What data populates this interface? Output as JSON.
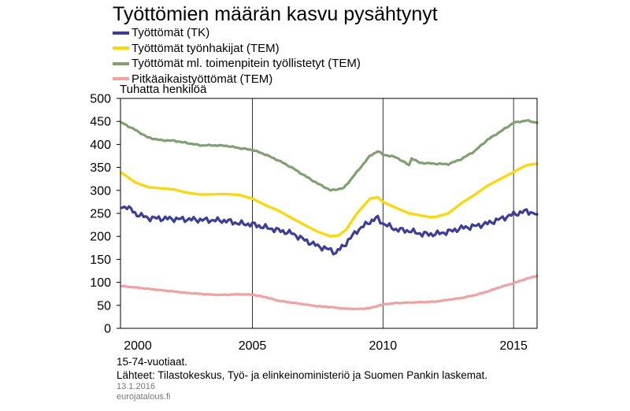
{
  "chart_data": {
    "type": "line",
    "title": "Työttömien määrän kasvu pysähtynyt",
    "ylabel": "Tuhatta henkilöä",
    "xlabel": "",
    "ylim": [
      0,
      500
    ],
    "xlim": [
      1999.95,
      2015.9
    ],
    "yticks": [
      0,
      50,
      100,
      150,
      200,
      250,
      300,
      350,
      400,
      450,
      500
    ],
    "yticks_labels": [
      "0",
      "50",
      "100",
      "150",
      "200",
      "250",
      "300",
      "350",
      "400",
      "450",
      "500"
    ],
    "xtick_labels": [
      {
        "label": "2000",
        "x": 2000
      },
      {
        "label": "2005",
        "x": 2005
      },
      {
        "label": "2010",
        "x": 2010
      },
      {
        "label": "2015",
        "x": 2015
      }
    ],
    "vgrid": [
      2005,
      2010,
      2015
    ],
    "legend_position": "top-left",
    "series": [
      {
        "name": "Työttömät (TK)",
        "color": "#3b3d9c",
        "noise": 7,
        "points": [
          [
            2000.0,
            262
          ],
          [
            2000.2,
            266
          ],
          [
            2000.5,
            250
          ],
          [
            2001.0,
            240
          ],
          [
            2002.0,
            238
          ],
          [
            2003.0,
            236
          ],
          [
            2004.0,
            234
          ],
          [
            2004.5,
            228
          ],
          [
            2005.0,
            226
          ],
          [
            2006.0,
            213
          ],
          [
            2006.5,
            207
          ],
          [
            2007.0,
            192
          ],
          [
            2007.5,
            179
          ],
          [
            2008.0,
            170
          ],
          [
            2008.2,
            165
          ],
          [
            2008.5,
            180
          ],
          [
            2009.0,
            212
          ],
          [
            2009.5,
            232
          ],
          [
            2009.8,
            240
          ],
          [
            2010.0,
            228
          ],
          [
            2010.5,
            215
          ],
          [
            2011.0,
            212
          ],
          [
            2011.5,
            205
          ],
          [
            2012.0,
            205
          ],
          [
            2012.5,
            210
          ],
          [
            2013.0,
            218
          ],
          [
            2013.5,
            222
          ],
          [
            2014.0,
            228
          ],
          [
            2014.5,
            238
          ],
          [
            2015.0,
            248
          ],
          [
            2015.5,
            255
          ],
          [
            2015.9,
            248
          ]
        ]
      },
      {
        "name": "Työttömät työnhakijat (TEM)",
        "color": "#ffd700",
        "noise": 0,
        "points": [
          [
            2000.0,
            338
          ],
          [
            2000.5,
            318
          ],
          [
            2001.0,
            307
          ],
          [
            2002.0,
            302
          ],
          [
            2002.5,
            295
          ],
          [
            2003.0,
            291
          ],
          [
            2004.0,
            292
          ],
          [
            2004.5,
            290
          ],
          [
            2005.0,
            282
          ],
          [
            2005.5,
            268
          ],
          [
            2006.0,
            256
          ],
          [
            2006.5,
            240
          ],
          [
            2007.0,
            225
          ],
          [
            2007.5,
            210
          ],
          [
            2008.0,
            200
          ],
          [
            2008.3,
            202
          ],
          [
            2008.6,
            215
          ],
          [
            2009.0,
            250
          ],
          [
            2009.5,
            282
          ],
          [
            2009.8,
            285
          ],
          [
            2010.0,
            275
          ],
          [
            2010.5,
            262
          ],
          [
            2011.0,
            250
          ],
          [
            2011.5,
            245
          ],
          [
            2011.8,
            242
          ],
          [
            2012.0,
            242
          ],
          [
            2012.5,
            250
          ],
          [
            2013.0,
            272
          ],
          [
            2013.5,
            290
          ],
          [
            2014.0,
            310
          ],
          [
            2014.5,
            325
          ],
          [
            2015.0,
            340
          ],
          [
            2015.5,
            355
          ],
          [
            2015.9,
            358
          ]
        ]
      },
      {
        "name": "Työttömät ml. toimenpitein työllistetyt (TEM)",
        "color": "#80a070",
        "noise": 1.5,
        "points": [
          [
            2000.0,
            447
          ],
          [
            2000.5,
            432
          ],
          [
            2001.0,
            415
          ],
          [
            2001.5,
            409
          ],
          [
            2002.0,
            408
          ],
          [
            2002.5,
            403
          ],
          [
            2003.0,
            398
          ],
          [
            2003.5,
            398
          ],
          [
            2004.0,
            397
          ],
          [
            2004.5,
            392
          ],
          [
            2005.0,
            388
          ],
          [
            2005.5,
            378
          ],
          [
            2006.0,
            365
          ],
          [
            2006.5,
            350
          ],
          [
            2007.0,
            332
          ],
          [
            2007.5,
            315
          ],
          [
            2008.0,
            300
          ],
          [
            2008.5,
            305
          ],
          [
            2009.0,
            340
          ],
          [
            2009.5,
            375
          ],
          [
            2009.8,
            385
          ],
          [
            2010.0,
            378
          ],
          [
            2010.5,
            372
          ],
          [
            2011.0,
            355
          ],
          [
            2011.1,
            370
          ],
          [
            2011.4,
            360
          ],
          [
            2012.0,
            358
          ],
          [
            2012.5,
            357
          ],
          [
            2013.0,
            368
          ],
          [
            2013.5,
            385
          ],
          [
            2014.0,
            410
          ],
          [
            2014.5,
            428
          ],
          [
            2015.0,
            447
          ],
          [
            2015.5,
            452
          ],
          [
            2015.9,
            447
          ]
        ]
      },
      {
        "name": "Pitkäaikaistyöttömät (TEM)",
        "color": "#f4a0a0",
        "noise": 0.8,
        "points": [
          [
            2000.0,
            92
          ],
          [
            2000.5,
            89
          ],
          [
            2001.0,
            86
          ],
          [
            2001.5,
            83
          ],
          [
            2002.0,
            80
          ],
          [
            2002.5,
            77
          ],
          [
            2003.0,
            75
          ],
          [
            2003.5,
            73
          ],
          [
            2004.0,
            73
          ],
          [
            2004.5,
            74
          ],
          [
            2005.0,
            73
          ],
          [
            2005.5,
            68
          ],
          [
            2006.0,
            60
          ],
          [
            2006.5,
            56
          ],
          [
            2007.0,
            52
          ],
          [
            2007.5,
            48
          ],
          [
            2008.0,
            46
          ],
          [
            2008.5,
            43
          ],
          [
            2009.0,
            42
          ],
          [
            2009.5,
            44
          ],
          [
            2010.0,
            52
          ],
          [
            2010.5,
            55
          ],
          [
            2011.0,
            56
          ],
          [
            2011.5,
            57
          ],
          [
            2012.0,
            58
          ],
          [
            2012.5,
            62
          ],
          [
            2013.0,
            66
          ],
          [
            2013.5,
            72
          ],
          [
            2014.0,
            80
          ],
          [
            2014.5,
            90
          ],
          [
            2015.0,
            98
          ],
          [
            2015.5,
            108
          ],
          [
            2015.9,
            114
          ]
        ]
      }
    ]
  },
  "footer": {
    "note": "15-74-vuotiaat.",
    "sources": "Lähteet: Tilastokeskus, Työ- ja elinkeinoministeriö ja Suomen Pankin laskemat.",
    "date": "13.1.2016",
    "site": "eurojatalous.fi"
  }
}
